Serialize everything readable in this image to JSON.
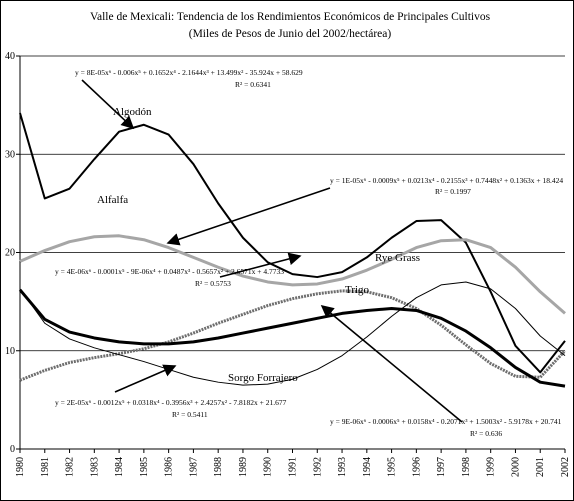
{
  "chart_data": {
    "type": "line",
    "title": "Valle de Mexicali: Tendencia de los Rendimientos Económicos de Principales Cultivos",
    "subtitle": "(Miles de Pesos de Junio del 2002/hectárea)",
    "x": [
      1980,
      1981,
      1982,
      1983,
      1984,
      1985,
      1986,
      1987,
      1988,
      1989,
      1990,
      1991,
      1992,
      1993,
      1994,
      1995,
      1996,
      1997,
      1998,
      1999,
      2000,
      2001,
      2002
    ],
    "xlim": [
      1980,
      2002
    ],
    "ylim": [
      0,
      40
    ],
    "yticks": [
      0,
      10,
      20,
      30,
      40
    ],
    "grid": true,
    "series": [
      {
        "name": "Algodón",
        "color": "#000000",
        "values": [
          34.2,
          25.5,
          26.5,
          29.5,
          32.3,
          33,
          32,
          29,
          25,
          21.5,
          19,
          17.8,
          17.5,
          18,
          19.5,
          21.5,
          23.2,
          23.3,
          21,
          16,
          10.5,
          7.8,
          11
        ]
      },
      {
        "name": "Alfalfa",
        "color": "#a6a6a6",
        "values": [
          19.1,
          20.2,
          21.1,
          21.6,
          21.7,
          21.3,
          20.5,
          19.5,
          18.5,
          17.6,
          17,
          16.7,
          16.8,
          17.3,
          18.2,
          19.3,
          20.5,
          21.2,
          21.3,
          20.5,
          18.5,
          16,
          13.8
        ]
      },
      {
        "name": "Rye Grass",
        "color": "#6e6e6e",
        "values": [
          7,
          8,
          8.8,
          9.3,
          9.7,
          10.2,
          10.9,
          11.8,
          12.8,
          13.7,
          14.6,
          15.3,
          15.8,
          16.1,
          16,
          15.4,
          14.3,
          12.6,
          10.6,
          8.7,
          7.4,
          7.3,
          10
        ]
      },
      {
        "name": "Trigo",
        "color": "#000000",
        "values": [
          16.2,
          13.2,
          11.9,
          11.3,
          10.9,
          10.7,
          10.7,
          10.9,
          11.3,
          11.8,
          12.3,
          12.8,
          13.3,
          13.8,
          14.1,
          14.3,
          14.1,
          13.3,
          12,
          10.3,
          8.3,
          6.8,
          6.4
        ]
      },
      {
        "name": "Sorgo Forrajero",
        "color": "#000000",
        "values": [
          16.3,
          12.8,
          11.2,
          10.3,
          9.6,
          8.9,
          8.1,
          7.3,
          6.8,
          6.5,
          6.6,
          7.1,
          8.1,
          9.5,
          11.4,
          13.5,
          15.4,
          16.7,
          17,
          16.3,
          14.3,
          11.5,
          9.5
        ]
      }
    ],
    "annotations": [
      "y = 8E-05x⁶ - 0.006x⁵ + 0.1652x⁴ - 2.1644x³ + 13.499x² - 35.924x + 58.629",
      "R² = 0.6341",
      "y = 1E-05x⁶ - 0.0009x⁵ + 0.0213x⁴ - 0.2155x³ + 0.7448x² + 0.1363x + 18.424",
      "R² = 0.1997",
      "y = 4E-06x⁶ - 0.0001x⁵ - 9E-06x⁴ + 0.0487x³ - 0.5657x² + 2.6571x + 4.7733",
      "R² = 0.5753",
      "y = 2E-05x⁶ - 0.0012x⁵ + 0.0318x⁴ - 0.3956x³ + 2.4257x² - 7.8182x + 21.677",
      "R² = 0.5411",
      "y = 9E-06x⁶ - 0.0006x⁵ + 0.0158x⁴ - 0.2071x³ + 1.5003x² - 5.9178x + 20.741",
      "R² = 0.636"
    ]
  }
}
